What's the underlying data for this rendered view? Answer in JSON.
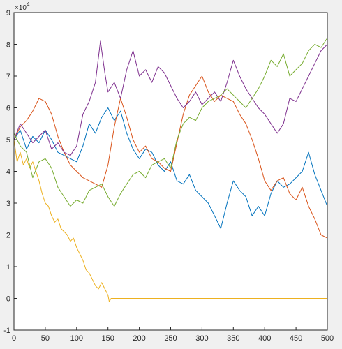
{
  "chart_data": {
    "type": "line",
    "title": "",
    "xlabel": "",
    "ylabel": "",
    "xlim": [
      0,
      500
    ],
    "ylim": [
      -10000,
      90000
    ],
    "xticks": [
      0,
      50,
      100,
      150,
      200,
      250,
      300,
      350,
      400,
      450,
      500
    ],
    "yticks": [
      -10000,
      0,
      10000,
      20000,
      30000,
      40000,
      50000,
      60000,
      70000,
      80000,
      90000
    ],
    "xtick_labels": [
      "0",
      "50",
      "100",
      "150",
      "200",
      "250",
      "300",
      "350",
      "400",
      "450",
      "500"
    ],
    "ytick_labels": [
      "-1",
      "0",
      "1",
      "2",
      "3",
      "4",
      "5",
      "6",
      "7",
      "8",
      "9"
    ],
    "y_exponent_label": "×10",
    "y_exponent_power": "4",
    "grid": false,
    "series": [
      {
        "color": "#0072BD",
        "x": [
          0,
          10,
          20,
          30,
          40,
          50,
          60,
          70,
          80,
          90,
          100,
          110,
          120,
          130,
          140,
          150,
          160,
          170,
          180,
          190,
          200,
          210,
          220,
          230,
          240,
          250,
          260,
          270,
          280,
          290,
          300,
          310,
          320,
          330,
          340,
          350,
          360,
          370,
          380,
          390,
          400,
          410,
          420,
          430,
          440,
          450,
          460,
          470,
          480,
          490,
          500
        ],
        "y": [
          50000,
          53000,
          47000,
          51000,
          49000,
          53000,
          50000,
          46000,
          45000,
          44000,
          43000,
          48000,
          55000,
          52000,
          57000,
          60000,
          56000,
          59000,
          52000,
          47000,
          44000,
          47000,
          46000,
          42000,
          40000,
          43000,
          37000,
          36000,
          39000,
          34000,
          32000,
          30000,
          26000,
          22000,
          30000,
          37000,
          34000,
          32000,
          26000,
          29000,
          26000,
          33000,
          37000,
          35000,
          36000,
          38000,
          40000,
          46000,
          39000,
          34000,
          29000
        ]
      },
      {
        "color": "#D95319",
        "x": [
          0,
          10,
          20,
          30,
          40,
          50,
          60,
          70,
          80,
          90,
          100,
          110,
          120,
          130,
          140,
          150,
          160,
          170,
          180,
          190,
          200,
          210,
          220,
          230,
          240,
          250,
          260,
          270,
          280,
          290,
          300,
          310,
          320,
          330,
          340,
          350,
          360,
          370,
          380,
          390,
          400,
          410,
          420,
          430,
          440,
          450,
          460,
          470,
          480,
          490,
          500
        ],
        "y": [
          50000,
          54000,
          56000,
          59000,
          63000,
          62000,
          58000,
          51000,
          46000,
          42000,
          40000,
          38000,
          37000,
          36000,
          35000,
          42000,
          54000,
          63000,
          57000,
          50000,
          46000,
          48000,
          44000,
          43000,
          41000,
          40000,
          49000,
          58000,
          64000,
          67000,
          70000,
          65000,
          62000,
          64000,
          63000,
          62000,
          58000,
          55000,
          50000,
          44000,
          37000,
          34000,
          37000,
          38000,
          33000,
          31000,
          35000,
          29000,
          25000,
          20000,
          19000
        ]
      },
      {
        "color": "#EDB120",
        "x": [
          0,
          5,
          10,
          15,
          20,
          25,
          30,
          35,
          40,
          45,
          50,
          55,
          60,
          65,
          70,
          75,
          80,
          85,
          90,
          95,
          100,
          105,
          110,
          115,
          120,
          125,
          130,
          135,
          140,
          145,
          150,
          152,
          155,
          160,
          200,
          250,
          300,
          350,
          400,
          450,
          500
        ],
        "y": [
          50000,
          43000,
          46000,
          42000,
          44000,
          41000,
          43000,
          40000,
          37000,
          33000,
          30000,
          29000,
          26000,
          24000,
          25000,
          22000,
          21000,
          20000,
          18000,
          19000,
          16000,
          14000,
          12000,
          9000,
          8000,
          6000,
          4000,
          3000,
          5000,
          3000,
          1000,
          -1000,
          0,
          0,
          0,
          0,
          0,
          0,
          0,
          0,
          0
        ]
      },
      {
        "color": "#7E2F8E",
        "x": [
          0,
          10,
          20,
          30,
          40,
          50,
          60,
          70,
          80,
          90,
          100,
          110,
          120,
          130,
          138,
          145,
          150,
          160,
          170,
          180,
          190,
          200,
          210,
          220,
          230,
          240,
          250,
          260,
          270,
          280,
          290,
          300,
          310,
          320,
          330,
          340,
          350,
          360,
          370,
          380,
          390,
          400,
          410,
          420,
          430,
          440,
          450,
          460,
          470,
          480,
          490,
          500
        ],
        "y": [
          50000,
          55000,
          52000,
          49000,
          51000,
          53000,
          47000,
          49000,
          46000,
          45000,
          48000,
          58000,
          62000,
          68000,
          81000,
          71000,
          65000,
          68000,
          63000,
          72000,
          78000,
          70000,
          72000,
          68000,
          73000,
          71000,
          67000,
          63000,
          60000,
          62000,
          65000,
          61000,
          63000,
          65000,
          62000,
          68000,
          75000,
          70000,
          66000,
          63000,
          60000,
          58000,
          55000,
          52000,
          55000,
          63000,
          62000,
          66000,
          70000,
          74000,
          78000,
          80000
        ]
      },
      {
        "color": "#77AC30",
        "x": [
          0,
          10,
          20,
          30,
          40,
          50,
          60,
          70,
          80,
          90,
          100,
          110,
          120,
          130,
          140,
          150,
          160,
          170,
          180,
          190,
          200,
          210,
          220,
          230,
          240,
          250,
          260,
          270,
          280,
          290,
          300,
          310,
          320,
          330,
          340,
          350,
          360,
          370,
          380,
          390,
          400,
          410,
          420,
          430,
          440,
          450,
          460,
          470,
          480,
          490,
          500
        ],
        "y": [
          52000,
          48000,
          46000,
          38000,
          43000,
          44000,
          41000,
          35000,
          32000,
          29000,
          31000,
          30000,
          34000,
          35000,
          36000,
          32000,
          29000,
          33000,
          36000,
          39000,
          40000,
          38000,
          42000,
          43000,
          44000,
          41000,
          50000,
          55000,
          57000,
          56000,
          60000,
          62000,
          63000,
          64000,
          66000,
          64000,
          62000,
          60000,
          63000,
          66000,
          70000,
          75000,
          73000,
          77000,
          70000,
          72000,
          74000,
          78000,
          80000,
          79000,
          82000
        ]
      }
    ]
  }
}
